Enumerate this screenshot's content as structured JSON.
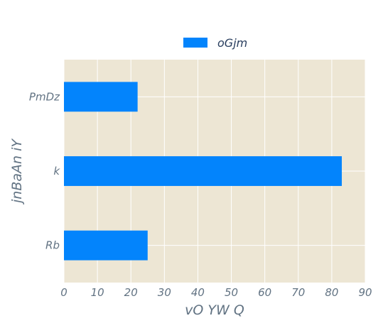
{
  "chart_data": {
    "type": "bar",
    "orientation": "horizontal",
    "categories": [
      "Rb",
      "k",
      "PmDz"
    ],
    "series": [
      {
        "name": "oGjm",
        "values": [
          25,
          83,
          22
        ]
      }
    ],
    "title": "",
    "xlabel": "vO YW Q",
    "ylabel": "jnBaAn iY",
    "xlim": [
      0,
      90
    ],
    "xticks": [
      0,
      10,
      20,
      30,
      40,
      50,
      60,
      70,
      80,
      90
    ],
    "grid": true,
    "legend": "top-center"
  },
  "colors": {
    "plot_background": "#ede6d4",
    "bar": "#0384fc",
    "grid": "#ffffff",
    "text": "#627383"
  }
}
